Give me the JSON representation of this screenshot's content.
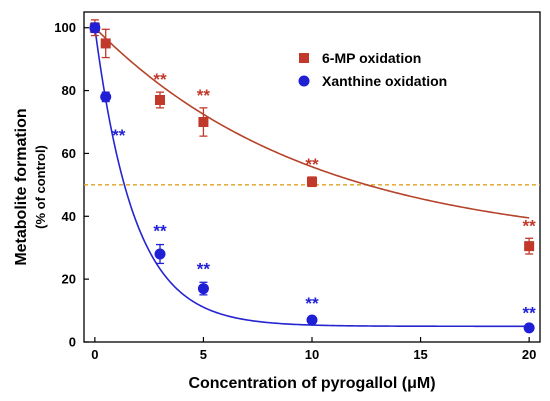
{
  "chart_data": {
    "type": "scatter",
    "xlabel": "Concentration of pyrogallol (μM)",
    "ylabel_line1": "Metabolite formation",
    "ylabel_line2": "(% of control)",
    "xlim": [
      -0.5,
      20.5
    ],
    "ylim": [
      0,
      105
    ],
    "x_ticks": [
      0,
      5,
      10,
      15,
      20
    ],
    "y_ticks": [
      0,
      20,
      40,
      60,
      80,
      100
    ],
    "reference_line_y": 50,
    "series": [
      {
        "name": "6-MP oxidation",
        "color": "#c0392b",
        "marker": "square",
        "x": [
          0,
          0.5,
          3,
          5,
          10,
          20
        ],
        "y": [
          100,
          95,
          77,
          70,
          51,
          30.5
        ],
        "err": [
          2.5,
          4.5,
          2.5,
          4.5,
          1.5,
          2.5
        ],
        "significance": [
          null,
          null,
          "**",
          "**",
          "**",
          "**"
        ]
      },
      {
        "name": "Xanthine oxidation",
        "color": "#1f1fd6",
        "marker": "circle",
        "x": [
          0,
          0.5,
          3,
          5,
          10,
          20
        ],
        "y": [
          100,
          78,
          28,
          17,
          7,
          4.5
        ],
        "err": [
          1.5,
          1.5,
          3,
          2,
          1,
          0.5
        ],
        "significance": [
          null,
          "**",
          "**",
          "**",
          "**",
          "**"
        ]
      }
    ],
    "fit_curves": [
      {
        "series": "6-MP oxidation",
        "color": "#b5442a",
        "a": 70,
        "k": 0.1,
        "c": 30
      },
      {
        "series": "Xanthine oxidation",
        "color": "#2525d0",
        "a": 95,
        "k": 0.55,
        "c": 5
      }
    ],
    "legend_position": "top-right"
  }
}
